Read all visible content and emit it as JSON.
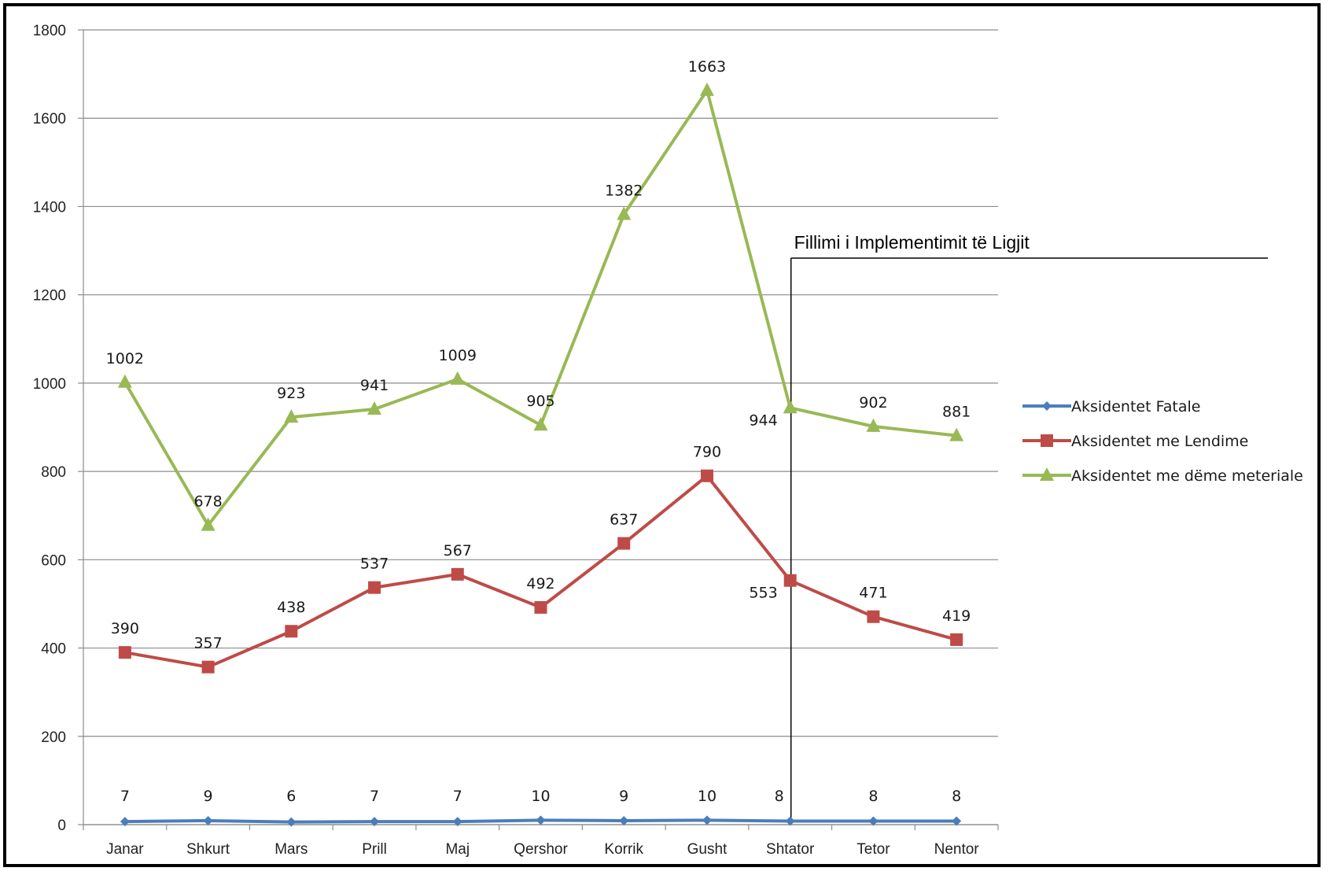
{
  "chart_data": {
    "type": "line",
    "categories": [
      "Janar",
      "Shkurt",
      "Mars",
      "Prill",
      "Maj",
      "Qershor",
      "Korrik",
      "Gusht",
      "Shtator",
      "Tetor",
      "Nentor"
    ],
    "series": [
      {
        "name": "Aksidentet Fatale",
        "color": "#4a7ebb",
        "marker": "diamond",
        "values": [
          7,
          9,
          6,
          7,
          7,
          10,
          9,
          10,
          8,
          8,
          8
        ]
      },
      {
        "name": "Aksidentet me Lendime",
        "color": "#be4b48",
        "marker": "square",
        "values": [
          390,
          357,
          438,
          537,
          567,
          492,
          637,
          790,
          553,
          471,
          419
        ]
      },
      {
        "name": "Aksidentet me dëme meteriale",
        "color": "#98b954",
        "marker": "triangle",
        "values": [
          1002,
          678,
          923,
          941,
          1009,
          905,
          1382,
          1663,
          944,
          902,
          881
        ]
      }
    ],
    "ylim": [
      0,
      1800
    ],
    "yticks": [
      0,
      200,
      400,
      600,
      800,
      1000,
      1200,
      1400,
      1600,
      1800
    ],
    "grid": true,
    "legend_position": "right",
    "annotation": {
      "text": "Fillimi i Implementimit të Ligjit",
      "category": "Shtator"
    }
  }
}
